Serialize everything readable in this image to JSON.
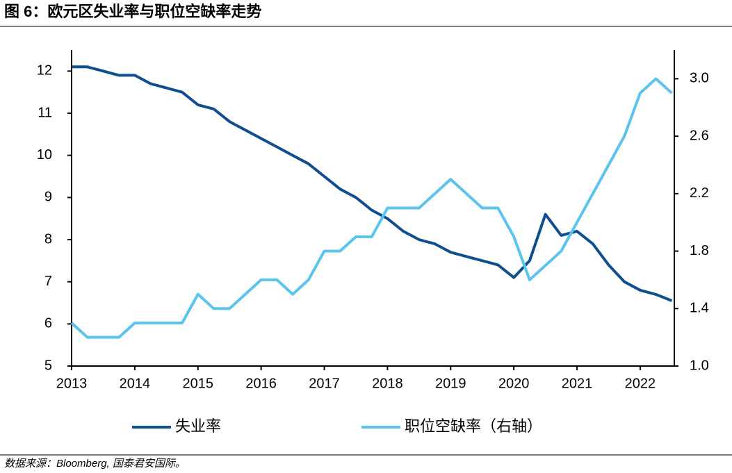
{
  "chart_data": {
    "type": "line",
    "title": "图 6：欧元区失业率与职位空缺率走势",
    "source": "数据来源：Bloomberg, 国泰君安国际。",
    "x": [
      2013,
      2013.25,
      2013.5,
      2013.75,
      2014,
      2014.25,
      2014.5,
      2014.75,
      2015,
      2015.25,
      2015.5,
      2015.75,
      2016,
      2016.25,
      2016.5,
      2016.75,
      2017,
      2017.25,
      2017.5,
      2017.75,
      2018,
      2018.25,
      2018.5,
      2018.75,
      2019,
      2019.25,
      2019.5,
      2019.75,
      2020,
      2020.25,
      2020.5,
      2020.75,
      2021,
      2021.25,
      2021.5,
      2021.75,
      2022,
      2022.25,
      2022.5
    ],
    "series": [
      {
        "name": "失业率",
        "color": "#0f4f8f",
        "values": [
          12.1,
          12.1,
          12.0,
          11.9,
          11.9,
          11.7,
          11.6,
          11.5,
          11.2,
          11.1,
          10.8,
          10.6,
          10.4,
          10.2,
          10.0,
          9.8,
          9.5,
          9.2,
          9.0,
          8.7,
          8.5,
          8.2,
          8.0,
          7.9,
          7.7,
          7.6,
          7.5,
          7.4,
          7.1,
          7.5,
          8.6,
          8.1,
          8.2,
          7.9,
          7.4,
          7.0,
          6.8,
          6.7,
          6.55
        ]
      },
      {
        "name": "职位空缺率（右轴）",
        "color": "#5bc4ee",
        "axis": "y2",
        "values": [
          1.3,
          1.2,
          1.2,
          1.2,
          1.3,
          1.3,
          1.3,
          1.3,
          1.5,
          1.4,
          1.4,
          1.5,
          1.6,
          1.6,
          1.5,
          1.6,
          1.8,
          1.8,
          1.9,
          1.9,
          2.1,
          2.1,
          2.1,
          2.2,
          2.3,
          2.2,
          2.1,
          2.1,
          1.9,
          1.6,
          1.7,
          1.8,
          2.0,
          2.2,
          2.4,
          2.6,
          2.9,
          3.0,
          2.9
        ]
      }
    ],
    "xlim": [
      2013,
      2022.54
    ],
    "xticks": [
      2013,
      2014,
      2015,
      2016,
      2017,
      2018,
      2019,
      2020,
      2021,
      2022
    ],
    "ylim": [
      5,
      12.5
    ],
    "yticks": [
      5,
      6,
      7,
      8,
      9,
      10,
      11,
      12
    ],
    "y2lim": [
      1,
      3.2
    ],
    "y2ticks": [
      {
        "value": 1,
        "label": "1.0"
      },
      {
        "value": 1.4,
        "label": "1.4"
      },
      {
        "value": 1.8,
        "label": "1.8"
      },
      {
        "value": 2.2,
        "label": "2.2"
      },
      {
        "value": 2.6,
        "label": "2.6"
      },
      {
        "value": 3,
        "label": "3.0"
      }
    ],
    "grid": false
  }
}
